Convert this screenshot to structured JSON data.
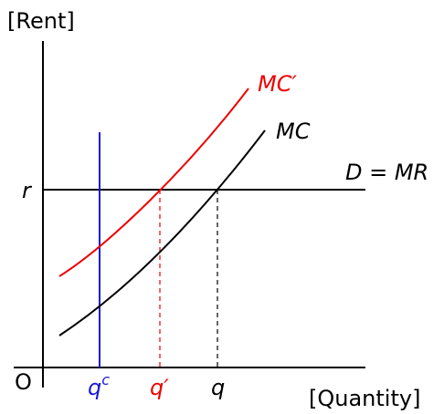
{
  "axes": {
    "y_label": "[Rent]",
    "x_label": "[Quantity]",
    "origin": "O",
    "price": "r"
  },
  "curves": [
    {
      "label": "MC′"
    },
    {
      "label": "MC"
    },
    {
      "label": "D = MR"
    }
  ],
  "quantities": [
    {
      "label": "q",
      "sup": "c"
    },
    {
      "label": "q′"
    },
    {
      "label": "q"
    }
  ]
}
